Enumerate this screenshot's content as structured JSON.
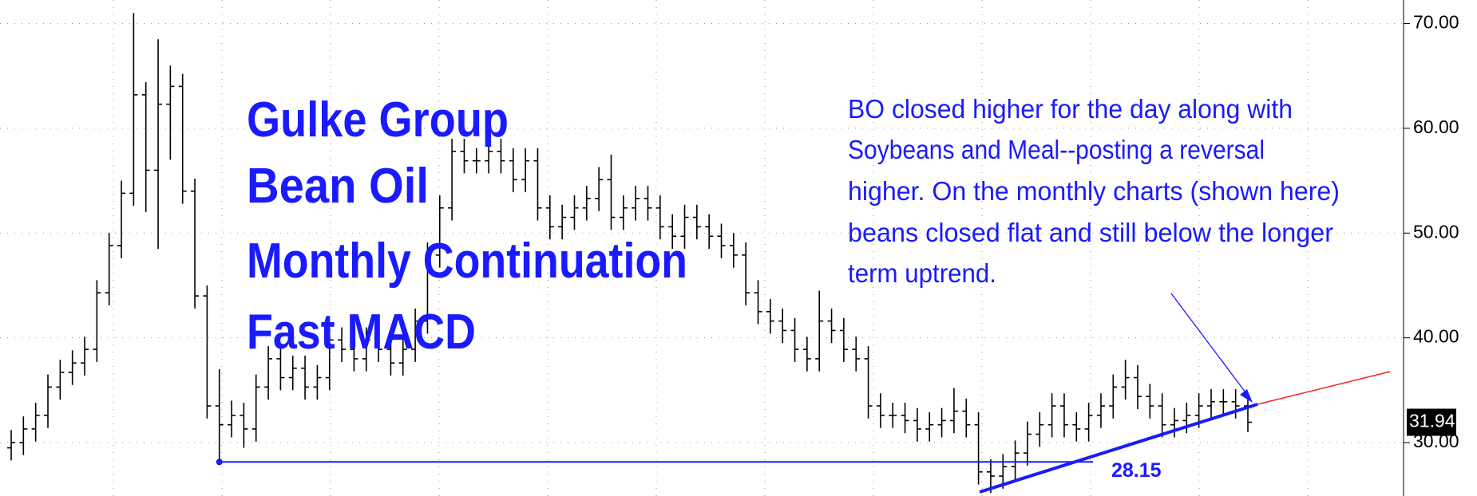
{
  "chart_data": {
    "type": "ohlc",
    "color": "#000000",
    "grid": true,
    "ylim": [
      24.9,
      72.25
    ],
    "yticks": [
      {
        "value": 30,
        "label": "30.00"
      },
      {
        "value": 40,
        "label": "40.00"
      },
      {
        "value": 50,
        "label": "50.00"
      },
      {
        "value": 60,
        "label": "60.00"
      },
      {
        "value": 70,
        "label": "70.00"
      }
    ],
    "open": [
      29.5,
      30,
      31.3,
      32.6,
      35.3,
      36.7,
      37.6,
      38.9,
      44.3,
      48.8,
      53.8,
      63.2,
      56,
      62.3,
      64,
      54,
      44,
      33.5,
      31.7,
      32.6,
      31.3,
      35.3,
      38,
      36.2,
      37.1,
      35.3,
      36.2,
      39.8,
      38.9,
      38,
      39.8,
      38.9,
      37.6,
      38.9,
      41.6,
      47.9,
      52.4,
      57.8,
      56.9,
      56.9,
      57.8,
      56.9,
      55.1,
      56.9,
      52.4,
      50.6,
      51.5,
      52.4,
      53.3,
      55.1,
      51.5,
      52.4,
      53.3,
      52.4,
      50.6,
      49.7,
      51.5,
      50.6,
      49.7,
      48.8,
      47.9,
      44.3,
      42.5,
      41.6,
      40.7,
      38.9,
      38,
      41.6,
      40.7,
      38.9,
      38,
      33.5,
      32.6,
      32.6,
      32.1,
      31.3,
      31.7,
      32.1,
      33,
      31.7,
      27.2,
      26.8,
      27.7,
      29,
      30.8,
      31.7,
      33.5,
      31.7,
      31.3,
      32.6,
      33.5,
      35.3,
      36.2,
      34.4,
      33.5,
      31.7,
      32.1,
      32.6,
      33.5,
      33.9,
      33.9,
      33.5
    ],
    "high": [
      31.2,
      32.5,
      33.8,
      36.5,
      37.9,
      38.8,
      40.1,
      45.5,
      50,
      55,
      71,
      64.4,
      68.5,
      66,
      65.2,
      55.2,
      45,
      37,
      34,
      33.8,
      36.5,
      39.2,
      39.2,
      38.3,
      38.3,
      37.4,
      41,
      41,
      40.1,
      41,
      41,
      40.1,
      40.1,
      42.8,
      49.1,
      53.6,
      59,
      59,
      58.1,
      59,
      59,
      58.1,
      58.1,
      58.1,
      53.6,
      52.7,
      53.6,
      54.5,
      56.3,
      57.5,
      53.6,
      54.5,
      54.5,
      53.6,
      51.8,
      52.7,
      52.7,
      51.8,
      50.9,
      50,
      49.1,
      45.5,
      43.7,
      42.8,
      41.9,
      40.1,
      44.5,
      42.8,
      41.9,
      40.1,
      39.2,
      34.7,
      33.8,
      33.8,
      33.3,
      32.9,
      33.3,
      35.2,
      34.2,
      32.9,
      28.4,
      28.9,
      30.2,
      32,
      32.9,
      34.7,
      34.7,
      32.9,
      33.8,
      34.7,
      36.5,
      37.9,
      37.4,
      35.6,
      34.7,
      33.3,
      33.8,
      34.7,
      35.1,
      35.1,
      35.1,
      34.2
    ],
    "low": [
      28.3,
      28.8,
      30.1,
      31.4,
      34.1,
      35.5,
      36.4,
      37.7,
      43.1,
      47.6,
      52.6,
      52,
      48.5,
      57,
      52.8,
      42.8,
      32.3,
      28.15,
      30.5,
      29.5,
      30.1,
      34.1,
      35,
      35,
      34.1,
      34.1,
      35,
      37.7,
      36.8,
      36.8,
      37.7,
      36.4,
      36.4,
      37.7,
      40.4,
      46.7,
      51.2,
      55.7,
      55.7,
      55.7,
      55.7,
      53.9,
      53.9,
      51.2,
      49.4,
      49.4,
      50.3,
      51.2,
      52.1,
      50.3,
      50.3,
      51.2,
      51.2,
      49.4,
      48.5,
      48.5,
      49.4,
      48.5,
      47.6,
      46.7,
      43.1,
      41.3,
      40.4,
      39.5,
      37.7,
      36.8,
      36.8,
      39.5,
      37.7,
      36.8,
      32.3,
      31.4,
      31.4,
      30.9,
      30.1,
      30.1,
      30.5,
      30.9,
      30.5,
      26,
      25.2,
      25.6,
      26.5,
      27.8,
      29.6,
      30.5,
      30.5,
      30.1,
      30.1,
      31.4,
      32.3,
      34.1,
      33.2,
      32.3,
      30.5,
      30.5,
      30.9,
      31.4,
      32.3,
      32.7,
      32.3,
      31
    ],
    "close": [
      30,
      31.3,
      32.6,
      35.3,
      36.7,
      37.6,
      38.9,
      44.3,
      48.8,
      53.8,
      63.2,
      56,
      62.3,
      64,
      54,
      44,
      33.5,
      31.7,
      32.6,
      31.3,
      35.3,
      38,
      36.2,
      37.1,
      35.3,
      36.2,
      39.8,
      38.9,
      38,
      39.8,
      38.9,
      37.6,
      38.9,
      41.6,
      47.9,
      52.4,
      57.8,
      56.9,
      56.9,
      57.8,
      56.9,
      55.1,
      56.9,
      52.4,
      50.6,
      51.5,
      52.4,
      53.3,
      55.1,
      51.5,
      52.4,
      53.3,
      52.4,
      50.6,
      49.7,
      51.5,
      50.6,
      49.7,
      48.8,
      47.9,
      44.3,
      42.5,
      41.6,
      40.7,
      38.9,
      38,
      41.6,
      40.7,
      38.9,
      38,
      33.5,
      32.6,
      32.6,
      32.1,
      31.3,
      31.7,
      32.1,
      33,
      31.7,
      27.2,
      26.8,
      27.7,
      29,
      30.8,
      31.7,
      33.5,
      31.7,
      31.3,
      32.6,
      33.5,
      35.3,
      36.2,
      34.4,
      33.5,
      31.7,
      32.1,
      32.6,
      33.5,
      33.9,
      33.9,
      33.5,
      31.94
    ],
    "annotations": {
      "title_lines": [
        "Gulke Group",
        "Bean Oil",
        "Monthly Continuation",
        "Fast MACD"
      ],
      "note_lines": [
        "BO closed higher for the day along with",
        "Soybeans and Meal--posting a reversal",
        "higher.  On the monthly charts (shown here)",
        "beans closed flat and still below the longer",
        "term uptrend."
      ],
      "support_level": 28.15
    }
  }
}
